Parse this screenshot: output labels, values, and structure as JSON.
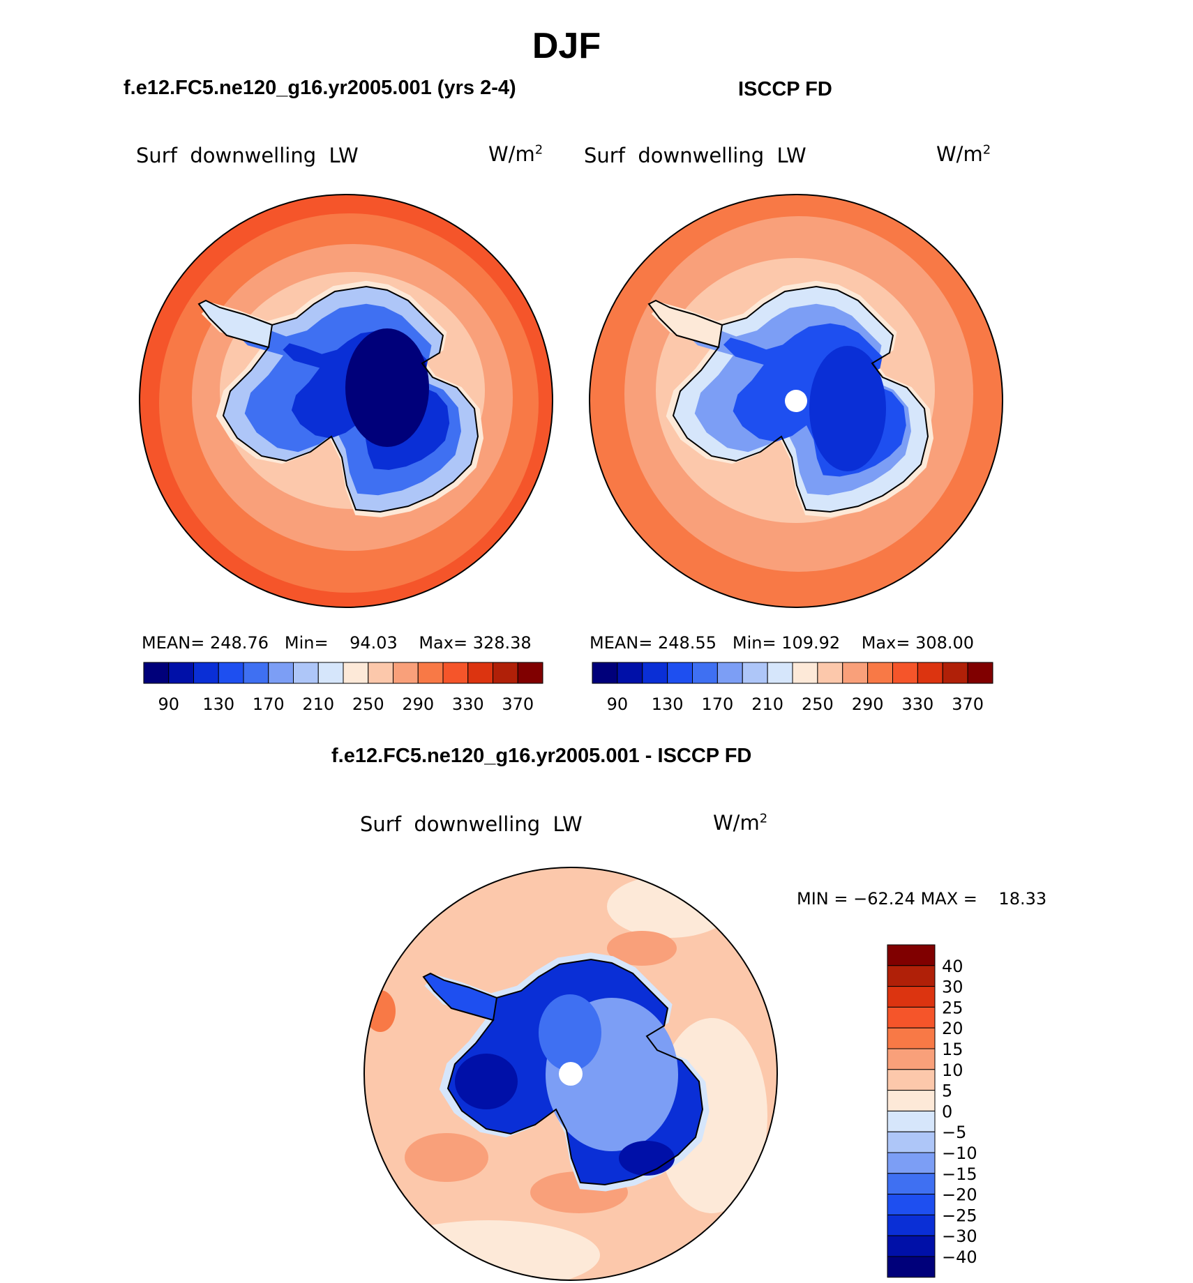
{
  "figure": {
    "season": "DJF",
    "left_title": "f.e12.FC5.ne120_g16.yr2005.001 (yrs 2-4)",
    "right_title": "ISCCP FD",
    "diff_title": "f.e12.FC5.ne120_g16.yr2005.001 - ISCCP FD"
  },
  "panels": [
    {
      "id": "model",
      "variable": "Surf  downwelling  LW",
      "units": "W/m",
      "units_sup": "2",
      "stats": {
        "mean_label": "MEAN=",
        "mean": "248.76",
        "min_label": "Min=",
        "min": "94.03",
        "max_label": "Max=",
        "max": "328.38"
      }
    },
    {
      "id": "obs",
      "variable": "Surf  downwelling  LW",
      "units": "W/m",
      "units_sup": "2",
      "stats": {
        "mean_label": "MEAN=",
        "mean": "248.55",
        "min_label": "Min=",
        "min": "109.92",
        "max_label": "Max=",
        "max": "308.00"
      }
    },
    {
      "id": "diff",
      "variable": "Surf  downwelling  LW",
      "units": "W/m",
      "units_sup": "2",
      "stats": {
        "min_label": "MIN =",
        "min": "−62.24",
        "max_label": "MAX =",
        "max": "18.33"
      }
    }
  ],
  "colorbar_main": {
    "ticks": [
      "90",
      "130",
      "170",
      "210",
      "250",
      "290",
      "330",
      "370"
    ],
    "colors": [
      "#00007a",
      "#0010a8",
      "#0a2fd6",
      "#1e4ff0",
      "#3f70f2",
      "#7c9ef5",
      "#aec6f8",
      "#d6e6fb",
      "#fde9d8",
      "#fcc8ab",
      "#f9a07a",
      "#f87946",
      "#f5552a",
      "#dc3410",
      "#b02008",
      "#800000"
    ]
  },
  "colorbar_diff": {
    "labels": [
      "40",
      "30",
      "25",
      "20",
      "15",
      "10",
      "5",
      "0",
      "−5",
      "−10",
      "−15",
      "−20",
      "−25",
      "−30",
      "−40"
    ],
    "colors": [
      "#800000",
      "#b02008",
      "#dc3410",
      "#f5552a",
      "#f87946",
      "#f9a07a",
      "#fcc8ab",
      "#fde9d8",
      "#d6e6fb",
      "#aec6f8",
      "#7c9ef5",
      "#3f70f2",
      "#1e4ff0",
      "#0a2fd6",
      "#0010a8",
      "#00007a"
    ]
  }
}
